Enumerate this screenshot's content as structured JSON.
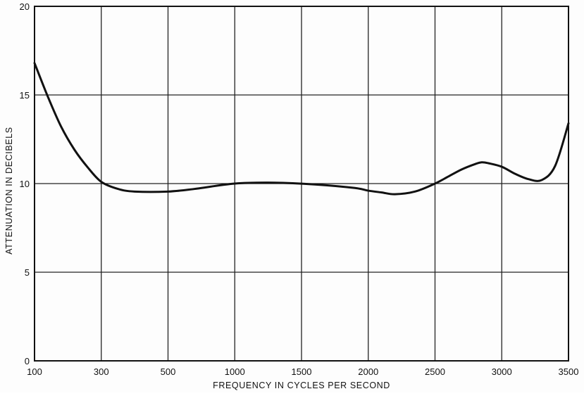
{
  "chart_data": {
    "type": "line",
    "title": "",
    "xlabel": "FREQUENCY IN CYCLES PER SECOND",
    "ylabel": "ATTENUATION IN DECIBELS",
    "x_ticks": [
      "100",
      "300",
      "500",
      "1000",
      "1500",
      "2000",
      "2500",
      "3000",
      "3500"
    ],
    "y_ticks": [
      "0",
      "5",
      "10",
      "15",
      "20"
    ],
    "ylim": [
      0,
      20
    ],
    "grid": true,
    "series": [
      {
        "x": [
          100,
          140,
          180,
          220,
          260,
          300,
          350,
          400,
          500,
          700,
          1000,
          1300,
          1600,
          1900,
          2000,
          2100,
          2200,
          2350,
          2500,
          2600,
          2700,
          2800,
          2850,
          2900,
          3000,
          3100,
          3200,
          3300,
          3400,
          3500
        ],
        "values": [
          16.8,
          14.9,
          13.2,
          11.9,
          10.9,
          10.1,
          9.7,
          9.55,
          9.55,
          9.7,
          10.0,
          10.05,
          9.95,
          9.75,
          9.6,
          9.5,
          9.4,
          9.55,
          10.0,
          10.4,
          10.8,
          11.1,
          11.2,
          11.15,
          10.95,
          10.55,
          10.25,
          10.2,
          11.0,
          13.4
        ],
        "color": "#111111"
      }
    ]
  }
}
